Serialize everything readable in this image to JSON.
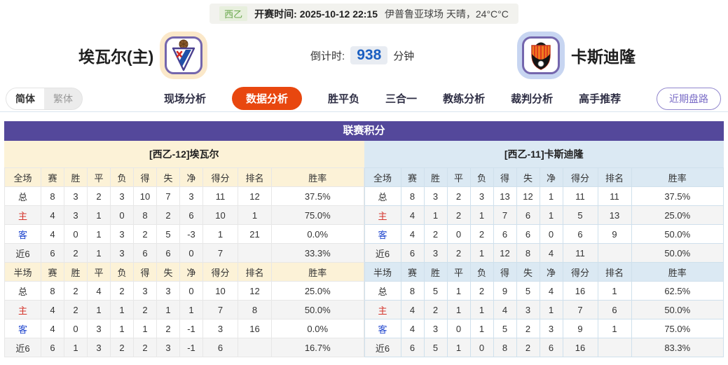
{
  "meta": {
    "league_tag": "西乙",
    "kickoff_label": "开赛时间:",
    "kickoff_time": "2025-10-12 22:15",
    "venue_weather": "伊普鲁亚球场 天晴，24°C°C"
  },
  "teams": {
    "home": {
      "name": "埃瓦尔(主)"
    },
    "away": {
      "name": "卡斯迪隆"
    }
  },
  "countdown": {
    "label": "倒计时:",
    "value": "938",
    "unit": "分钟"
  },
  "lang_toggle": {
    "simplified": "简体",
    "traditional": "繁体"
  },
  "nav": {
    "tabs": [
      {
        "id": "live",
        "label": "现场分析",
        "active": false
      },
      {
        "id": "data",
        "label": "数据分析",
        "active": true
      },
      {
        "id": "odds",
        "label": "胜平负",
        "active": false
      },
      {
        "id": "combo",
        "label": "三合一",
        "active": false
      },
      {
        "id": "coach",
        "label": "教练分析",
        "active": false
      },
      {
        "id": "referee",
        "label": "裁判分析",
        "active": false
      },
      {
        "id": "expert",
        "label": "高手推荐",
        "active": false
      }
    ],
    "recent_button": "近期盘路"
  },
  "colors": {
    "accent_purple": "#54489b",
    "active_tab_orange": "#e8470f",
    "home_section_bg": "#fcf2d7",
    "away_section_bg": "#dbe9f3",
    "countdown_blue": "#1b5fc1",
    "league_tag_green": "#68a74b"
  },
  "standings": {
    "title": "联赛积分",
    "sides": [
      {
        "key": "left",
        "header": "[西乙-12]埃瓦尔",
        "sections": [
          {
            "scope": "全场",
            "columns": [
              "赛",
              "胜",
              "平",
              "负",
              "得",
              "失",
              "净",
              "得分",
              "排名",
              "胜率"
            ],
            "rows": [
              {
                "label": "总",
                "type": "total",
                "values": [
                  "8",
                  "3",
                  "2",
                  "3",
                  "10",
                  "7",
                  "3",
                  "11",
                  "12",
                  "37.5%"
                ]
              },
              {
                "label": "主",
                "type": "home",
                "values": [
                  "4",
                  "3",
                  "1",
                  "0",
                  "8",
                  "2",
                  "6",
                  "10",
                  "1",
                  "75.0%"
                ]
              },
              {
                "label": "客",
                "type": "away",
                "values": [
                  "4",
                  "0",
                  "1",
                  "3",
                  "2",
                  "5",
                  "-3",
                  "1",
                  "21",
                  "0.0%"
                ]
              },
              {
                "label": "近6",
                "type": "recent",
                "values": [
                  "6",
                  "2",
                  "1",
                  "3",
                  "6",
                  "6",
                  "0",
                  "7",
                  "",
                  "33.3%"
                ]
              }
            ]
          },
          {
            "scope": "半场",
            "columns": [
              "赛",
              "胜",
              "平",
              "负",
              "得",
              "失",
              "净",
              "得分",
              "排名",
              "胜率"
            ],
            "rows": [
              {
                "label": "总",
                "type": "total",
                "values": [
                  "8",
                  "2",
                  "4",
                  "2",
                  "3",
                  "3",
                  "0",
                  "10",
                  "12",
                  "25.0%"
                ]
              },
              {
                "label": "主",
                "type": "home",
                "values": [
                  "4",
                  "2",
                  "1",
                  "1",
                  "2",
                  "1",
                  "1",
                  "7",
                  "8",
                  "50.0%"
                ]
              },
              {
                "label": "客",
                "type": "away",
                "values": [
                  "4",
                  "0",
                  "3",
                  "1",
                  "1",
                  "2",
                  "-1",
                  "3",
                  "16",
                  "0.0%"
                ]
              },
              {
                "label": "近6",
                "type": "recent",
                "values": [
                  "6",
                  "1",
                  "3",
                  "2",
                  "2",
                  "3",
                  "-1",
                  "6",
                  "",
                  "16.7%"
                ]
              }
            ]
          }
        ]
      },
      {
        "key": "right",
        "header": "[西乙-11]卡斯迪隆",
        "sections": [
          {
            "scope": "全场",
            "columns": [
              "赛",
              "胜",
              "平",
              "负",
              "得",
              "失",
              "净",
              "得分",
              "排名",
              "胜率"
            ],
            "rows": [
              {
                "label": "总",
                "type": "total",
                "values": [
                  "8",
                  "3",
                  "2",
                  "3",
                  "13",
                  "12",
                  "1",
                  "11",
                  "11",
                  "37.5%"
                ]
              },
              {
                "label": "主",
                "type": "home",
                "values": [
                  "4",
                  "1",
                  "2",
                  "1",
                  "7",
                  "6",
                  "1",
                  "5",
                  "13",
                  "25.0%"
                ]
              },
              {
                "label": "客",
                "type": "away",
                "values": [
                  "4",
                  "2",
                  "0",
                  "2",
                  "6",
                  "6",
                  "0",
                  "6",
                  "9",
                  "50.0%"
                ]
              },
              {
                "label": "近6",
                "type": "recent",
                "values": [
                  "6",
                  "3",
                  "2",
                  "1",
                  "12",
                  "8",
                  "4",
                  "11",
                  "",
                  "50.0%"
                ]
              }
            ]
          },
          {
            "scope": "半场",
            "columns": [
              "赛",
              "胜",
              "平",
              "负",
              "得",
              "失",
              "净",
              "得分",
              "排名",
              "胜率"
            ],
            "rows": [
              {
                "label": "总",
                "type": "total",
                "values": [
                  "8",
                  "5",
                  "1",
                  "2",
                  "9",
                  "5",
                  "4",
                  "16",
                  "1",
                  "62.5%"
                ]
              },
              {
                "label": "主",
                "type": "home",
                "values": [
                  "4",
                  "2",
                  "1",
                  "1",
                  "4",
                  "3",
                  "1",
                  "7",
                  "6",
                  "50.0%"
                ]
              },
              {
                "label": "客",
                "type": "away",
                "values": [
                  "4",
                  "3",
                  "0",
                  "1",
                  "5",
                  "2",
                  "3",
                  "9",
                  "1",
                  "75.0%"
                ]
              },
              {
                "label": "近6",
                "type": "recent",
                "values": [
                  "6",
                  "5",
                  "1",
                  "0",
                  "8",
                  "2",
                  "6",
                  "16",
                  "",
                  "83.3%"
                ]
              }
            ]
          }
        ]
      }
    ]
  }
}
